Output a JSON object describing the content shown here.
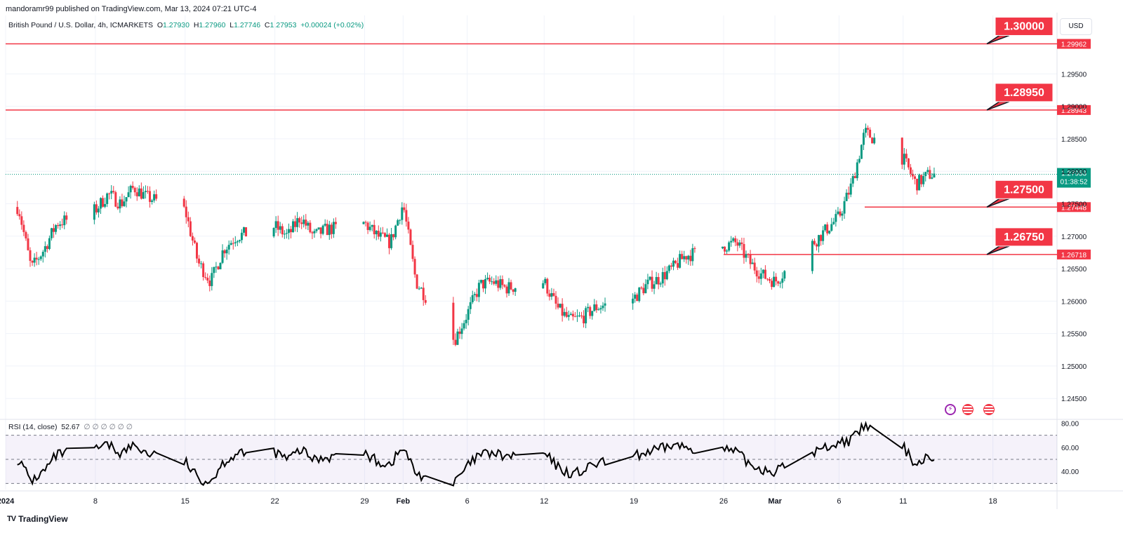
{
  "header": {
    "publisher": "mandoramr99 published on TradingView.com, Mar 13, 2024 07:21 UTC-4"
  },
  "legend": {
    "symbol": "British Pound / U.S. Dollar, 4h, ICMARKETS",
    "open_label": "O",
    "open": "1.27930",
    "high_label": "H",
    "high": "1.27960",
    "low_label": "L",
    "low": "1.27746",
    "close_label": "C",
    "close": "1.27953",
    "change": "+0.00024 (+0.02%)"
  },
  "currency_button": "USD",
  "brand": {
    "name": "TradingView",
    "logo_text": "TV"
  },
  "colors": {
    "up": "#089981",
    "down": "#f23645",
    "level": "#f23645",
    "rsi_line": "#000000",
    "rsi_band": "#7e57c2"
  },
  "events": [
    {
      "icon": "lightning-event-icon",
      "color": "#9c27b0"
    },
    {
      "icon": "us-flag-icon",
      "color": "#f23645"
    },
    {
      "icon": "us-flag-icon",
      "color": "#f23645"
    }
  ],
  "chart_data": [
    {
      "type": "candlestick",
      "title": "British Pound / U.S. Dollar, 4h, ICMARKETS",
      "ylim": [
        1.242,
        1.304
      ],
      "y_ticks": [
        "1.24500",
        "1.25000",
        "1.25500",
        "1.26000",
        "1.26500",
        "1.27000",
        "1.27500",
        "1.28000",
        "1.28500",
        "1.29000",
        "1.29500"
      ],
      "x_ticks": [
        "2024",
        "8",
        "15",
        "22",
        "29",
        "Feb",
        "6",
        "12",
        "19",
        "26",
        "Mar",
        "6",
        "11",
        "18"
      ],
      "anchors": [
        [
          "2024-01-02",
          1.2745
        ],
        [
          "2024-01-03",
          1.265
        ],
        [
          "2024-01-04",
          1.268
        ],
        [
          "2024-01-05",
          1.272
        ],
        [
          "2024-01-08",
          1.274
        ],
        [
          "2024-01-09",
          1.2765
        ],
        [
          "2024-01-10",
          1.275
        ],
        [
          "2024-01-11",
          1.2775
        ],
        [
          "2024-01-12",
          1.276
        ],
        [
          "2024-01-15",
          1.274
        ],
        [
          "2024-01-16",
          1.266
        ],
        [
          "2024-01-17",
          1.263
        ],
        [
          "2024-01-18",
          1.268
        ],
        [
          "2024-01-19",
          1.27
        ],
        [
          "2024-01-22",
          1.2715
        ],
        [
          "2024-01-23",
          1.27
        ],
        [
          "2024-01-24",
          1.273
        ],
        [
          "2024-01-25",
          1.27
        ],
        [
          "2024-01-26",
          1.271
        ],
        [
          "2024-01-29",
          1.272
        ],
        [
          "2024-01-30",
          1.27
        ],
        [
          "2024-01-31",
          1.269
        ],
        [
          "2024-02-01",
          1.275
        ],
        [
          "2024-02-02",
          1.263
        ],
        [
          "2024-02-05",
          1.254
        ],
        [
          "2024-02-06",
          1.258
        ],
        [
          "2024-02-07",
          1.2625
        ],
        [
          "2024-02-08",
          1.263
        ],
        [
          "2024-02-09",
          1.262
        ],
        [
          "2024-02-12",
          1.263
        ],
        [
          "2024-02-13",
          1.259
        ],
        [
          "2024-02-14",
          1.257
        ],
        [
          "2024-02-15",
          1.2575
        ],
        [
          "2024-02-16",
          1.259
        ],
        [
          "2024-02-19",
          1.2605
        ],
        [
          "2024-02-20",
          1.2625
        ],
        [
          "2024-02-21",
          1.2635
        ],
        [
          "2024-02-22",
          1.265
        ],
        [
          "2024-02-23",
          1.267
        ],
        [
          "2024-02-26",
          1.2685
        ],
        [
          "2024-02-27",
          1.269
        ],
        [
          "2024-02-28",
          1.266
        ],
        [
          "2024-02-29",
          1.264
        ],
        [
          "2024-03-01",
          1.263
        ],
        [
          "2024-03-04",
          1.269
        ],
        [
          "2024-03-05",
          1.271
        ],
        [
          "2024-03-06",
          1.273
        ],
        [
          "2024-03-07",
          1.278
        ],
        [
          "2024-03-08",
          1.286
        ],
        [
          "2024-03-11",
          1.282
        ],
        [
          "2024-03-12",
          1.278
        ],
        [
          "2024-03-13",
          1.2795
        ]
      ],
      "last_price": "1.27953",
      "countdown": "01:38:52",
      "levels": [
        {
          "axis_label": "1.29962",
          "value": 1.29962,
          "callout": "1.30000",
          "from": "2024-01-01"
        },
        {
          "axis_label": "1.28943",
          "value": 1.28943,
          "callout": "1.28950",
          "from": "2024-01-01"
        },
        {
          "axis_label": "1.27448",
          "value": 1.27448,
          "callout": "1.27500",
          "from": "2024-03-08"
        },
        {
          "axis_label": "1.26718",
          "value": 1.26718,
          "callout": "1.26750",
          "from": "2024-02-26"
        }
      ]
    },
    {
      "type": "line",
      "title": "RSI (14, close)",
      "value_label": "52.67",
      "extra_values": "∅ ∅ ∅ ∅ ∅ ∅",
      "ylim": [
        25,
        82
      ],
      "y_ticks": [
        "40.00",
        "60.00",
        "80.00"
      ],
      "band": [
        30,
        70
      ],
      "midline": 50,
      "anchors": [
        [
          "2024-01-02",
          50
        ],
        [
          "2024-01-03",
          32
        ],
        [
          "2024-01-04",
          40
        ],
        [
          "2024-01-05",
          54
        ],
        [
          "2024-01-08",
          58
        ],
        [
          "2024-01-09",
          62
        ],
        [
          "2024-01-10",
          55
        ],
        [
          "2024-01-11",
          62
        ],
        [
          "2024-01-12",
          55
        ],
        [
          "2024-01-15",
          48
        ],
        [
          "2024-01-16",
          34
        ],
        [
          "2024-01-17",
          32
        ],
        [
          "2024-01-18",
          48
        ],
        [
          "2024-01-19",
          54
        ],
        [
          "2024-01-22",
          56
        ],
        [
          "2024-01-23",
          50
        ],
        [
          "2024-01-24",
          58
        ],
        [
          "2024-01-25",
          50
        ],
        [
          "2024-01-26",
          52
        ],
        [
          "2024-01-29",
          55
        ],
        [
          "2024-01-30",
          48
        ],
        [
          "2024-01-31",
          46
        ],
        [
          "2024-02-01",
          60
        ],
        [
          "2024-02-02",
          38
        ],
        [
          "2024-02-05",
          30
        ],
        [
          "2024-02-06",
          44
        ],
        [
          "2024-02-07",
          54
        ],
        [
          "2024-02-08",
          55
        ],
        [
          "2024-02-09",
          52
        ],
        [
          "2024-02-12",
          55
        ],
        [
          "2024-02-13",
          44
        ],
        [
          "2024-02-14",
          38
        ],
        [
          "2024-02-15",
          40
        ],
        [
          "2024-02-16",
          46
        ],
        [
          "2024-02-19",
          52
        ],
        [
          "2024-02-20",
          56
        ],
        [
          "2024-02-21",
          58
        ],
        [
          "2024-02-22",
          62
        ],
        [
          "2024-02-23",
          60
        ],
        [
          "2024-02-26",
          58
        ],
        [
          "2024-02-27",
          56
        ],
        [
          "2024-02-28",
          46
        ],
        [
          "2024-02-29",
          42
        ],
        [
          "2024-03-01",
          40
        ],
        [
          "2024-03-04",
          56
        ],
        [
          "2024-03-05",
          60
        ],
        [
          "2024-03-06",
          64
        ],
        [
          "2024-03-07",
          66
        ],
        [
          "2024-03-08",
          78
        ],
        [
          "2024-03-11",
          60
        ],
        [
          "2024-03-12",
          46
        ],
        [
          "2024-03-13",
          52.67
        ]
      ]
    }
  ]
}
